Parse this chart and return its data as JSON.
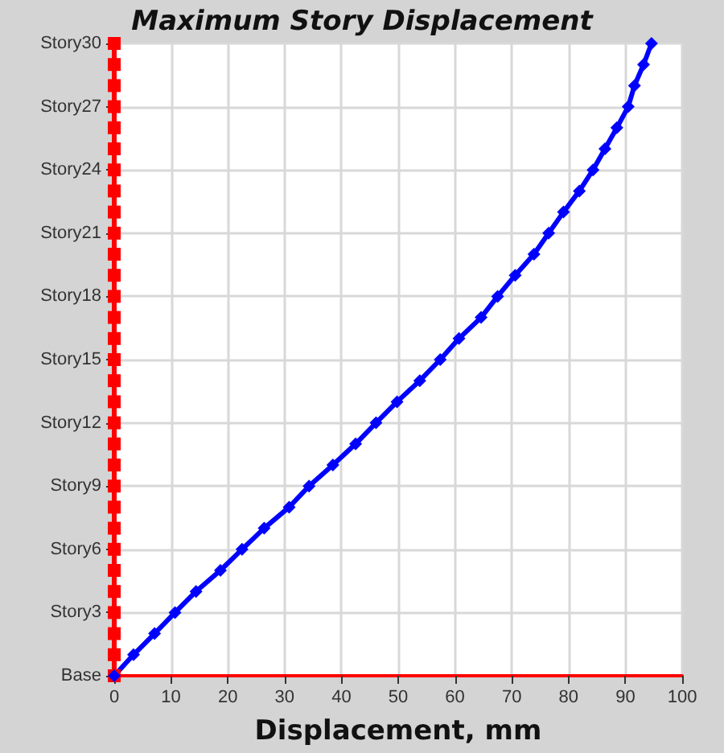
{
  "chart_data": {
    "type": "line",
    "title": "Maximum Story Displacement",
    "xlabel": "Displacement, mm",
    "orientation": "horizontal",
    "categories": [
      "Story30",
      null,
      null,
      "Story27",
      null,
      null,
      "Story24",
      null,
      null,
      "Story21",
      null,
      null,
      "Story18",
      null,
      null,
      "Story15",
      null,
      null,
      "Story12",
      null,
      null,
      "Story9",
      null,
      null,
      "Story6",
      null,
      null,
      "Story3",
      null,
      null,
      "Base"
    ],
    "series": [
      {
        "color": "#ff0000",
        "marker": "square",
        "values": [
          0,
          0,
          0,
          0,
          0,
          0,
          0,
          0,
          0,
          0,
          0,
          0,
          0,
          0,
          0,
          0,
          0,
          0,
          0,
          0,
          0,
          0,
          0,
          0,
          0,
          0,
          0,
          0,
          0,
          0,
          0
        ]
      },
      {
        "color": "#0000ff",
        "marker": "diamond",
        "values": [
          94.6,
          93.2,
          91.6,
          90.5,
          88.5,
          86.4,
          84.3,
          81.9,
          79.1,
          76.5,
          73.9,
          70.6,
          67.5,
          64.6,
          60.7,
          57.4,
          53.8,
          49.8,
          46.1,
          42.5,
          38.5,
          34.3,
          30.8,
          26.4,
          22.5,
          18.7,
          14.4,
          10.7,
          7.1,
          3.4,
          0
        ]
      }
    ],
    "xlim": [
      0,
      100
    ],
    "xticks": [
      0,
      10,
      20,
      30,
      40,
      50,
      60,
      70,
      80,
      90,
      100
    ],
    "grid": true,
    "line_style": "solid"
  }
}
